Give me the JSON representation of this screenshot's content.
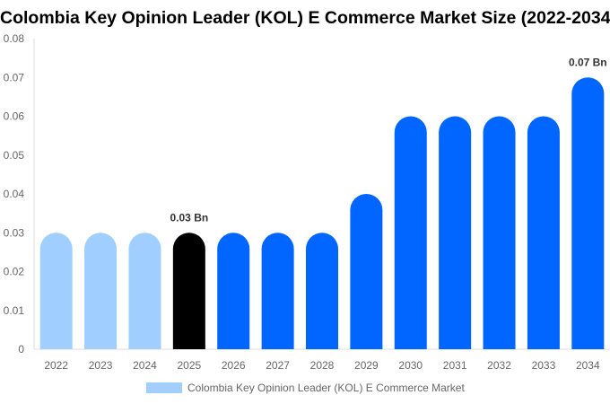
{
  "chart_data": {
    "type": "bar",
    "title": "Colombia Key Opinion Leader (KOL) E Commerce Market Size (2022-2034)",
    "categories": [
      "2022",
      "2023",
      "2024",
      "2025",
      "2026",
      "2027",
      "2028",
      "2029",
      "2030",
      "2031",
      "2032",
      "2033",
      "2034"
    ],
    "series": [
      {
        "name": "Colombia Key Opinion Leader (KOL) E Commerce Market",
        "values": [
          0.03,
          0.03,
          0.03,
          0.03,
          0.03,
          0.03,
          0.03,
          0.04,
          0.06,
          0.06,
          0.06,
          0.06,
          0.07
        ]
      }
    ],
    "bar_colors": [
      "#a0cfff",
      "#a0cfff",
      "#a0cfff",
      "#000000",
      "#0066ff",
      "#0066ff",
      "#0066ff",
      "#0066ff",
      "#0066ff",
      "#0066ff",
      "#0066ff",
      "#0066ff",
      "#0066ff"
    ],
    "ylim": [
      0,
      0.08
    ],
    "yticks": [
      "0",
      "0.01",
      "0.02",
      "0.03",
      "0.04",
      "0.05",
      "0.06",
      "0.07",
      "0.08"
    ],
    "data_labels": [
      {
        "index": 3,
        "text": "0.03 Bn"
      },
      {
        "index": 12,
        "text": "0.07 Bn"
      }
    ],
    "grid": false,
    "legend": {
      "position": "bottom",
      "color": "#a0cfff"
    },
    "xlabel": "",
    "ylabel": ""
  }
}
